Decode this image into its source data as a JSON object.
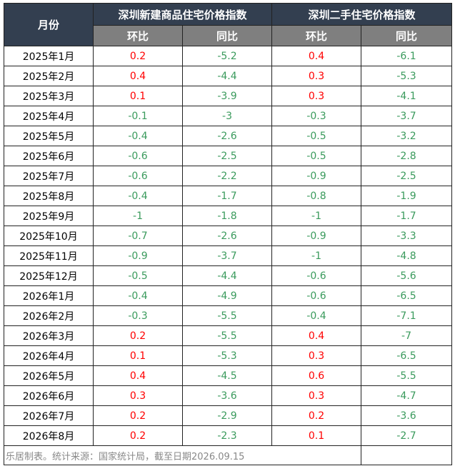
{
  "header": {
    "month": "月份",
    "groups": [
      "深圳新建商品住宅价格指数",
      "深圳二手住宅价格指数"
    ],
    "sub": [
      "环比",
      "同比",
      "环比",
      "同比"
    ]
  },
  "table": {
    "rows": [
      [
        "2025年1月",
        0.2,
        -5.2,
        0.4,
        -6.1
      ],
      [
        "2025年2月",
        0.4,
        -4.4,
        0.3,
        -5.3
      ],
      [
        "2025年3月",
        0.1,
        -3.9,
        0.3,
        -4.1
      ],
      [
        "2025年4月",
        -0.1,
        -3,
        -0.3,
        -3.7
      ],
      [
        "2025年5月",
        -0.4,
        -2.6,
        -0.5,
        -3.2
      ],
      [
        "2025年6月",
        -0.6,
        -2.5,
        -0.5,
        -2.8
      ],
      [
        "2025年7月",
        -0.6,
        -2.2,
        -0.9,
        -2.5
      ],
      [
        "2025年8月",
        -0.4,
        -1.7,
        -0.8,
        -1.9
      ],
      [
        "2025年9月",
        -1,
        -1.8,
        -1,
        -1.7
      ],
      [
        "2025年10月",
        -0.7,
        -2.6,
        -0.9,
        -3.3
      ],
      [
        "2025年11月",
        -0.9,
        -3.7,
        -1,
        -4.8
      ],
      [
        "2025年12月",
        -0.5,
        -4.4,
        -0.6,
        -5.6
      ],
      [
        "2026年1月",
        -0.4,
        -4.9,
        -0.6,
        -6.5
      ],
      [
        "2026年2月",
        -0.3,
        -5.5,
        -0.4,
        -7.1
      ],
      [
        "2026年3月",
        0.2,
        -5.5,
        0.4,
        -7
      ],
      [
        "2026年4月",
        0.1,
        -5.3,
        0.3,
        -6.5
      ],
      [
        "2026年5月",
        0.4,
        -4.5,
        0.6,
        -5.5
      ],
      [
        "2026年6月",
        0.3,
        -3.6,
        0.3,
        -4.7
      ],
      [
        "2026年7月",
        0.2,
        -2.9,
        0.2,
        -3.6
      ],
      [
        "2026年8月",
        0.2,
        -2.3,
        0.1,
        -2.7
      ]
    ],
    "positive_color": "#ff0000",
    "negative_color": "#3a9a5c"
  },
  "footer": "乐居制表。统计来源：国家统计局，截至日期2026.09.15"
}
